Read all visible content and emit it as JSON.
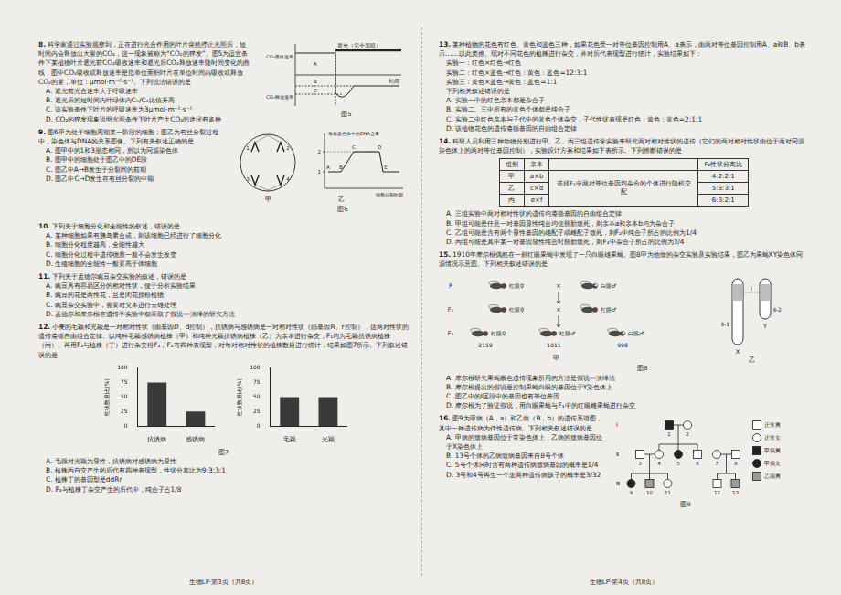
{
  "chart_data": [
    {
      "type": "bar",
      "ylabel": "性状数量比(%)",
      "categories": [
        "抗锈病",
        "感锈病"
      ],
      "values": [
        75,
        25
      ],
      "color": "#3a3a3a",
      "ylim": [
        0,
        100
      ],
      "yticks": [
        0,
        25,
        50,
        75,
        100
      ],
      "grid": false
    },
    {
      "type": "bar",
      "ylabel": "性状数量比(%)",
      "categories": [
        "毛颖",
        "光颖"
      ],
      "values": [
        50,
        50
      ],
      "color": "#3a3a3a",
      "ylim": [
        0,
        100
      ],
      "yticks": [
        0,
        25,
        50,
        75,
        100
      ],
      "grid": false
    }
  ],
  "pages": [
    {
      "footer": "生物LP·第3页（共8页）",
      "questions": [
        {
          "number": "8.",
          "stem": "科学家通过实验观察到，正在进行光合作用的叶片突然停止光照后，短时间内会释放出大量的CO₂，这一现象被称为“CO₂的猝发”。图5为适宜条件下某植物叶片遮光前CO₂吸收速率和遮光后CO₂释放速率随时间变化的曲线，图中CO₂吸收或释放速率是指单位面积叶片在单位时间内吸收或释放CO₂的量，单位：μmol·m⁻²·s⁻¹。下列说法错误的是",
          "options": [
            "A. 遮光前光合速率大于呼吸速率",
            "B. 遮光后的短时间内叶绿体内C₅/C₃比值升高",
            "C. 该实验条件下叶片的呼吸速率为3μmol·m⁻²·s⁻¹",
            "D. CO₂的猝发现象说明光照条件下叶片产生CO₂的途径有多种"
          ],
          "fig5": {
            "caption": "图5",
            "y_top": "CO₂吸收速率",
            "y_bottom": "CO₂释放速率",
            "x_label": "时间",
            "shade": "遮光（完全黑暗）",
            "regions": [
              "A",
              "B",
              "C"
            ]
          }
        },
        {
          "number": "9.",
          "stem": "图6甲为处于细胞周期某一阶段的细胞；图乙为有丝分裂过程中，染色体与DNA的关系图像。下列有关叙述正确的是",
          "options": [
            "A. 图甲中的1和3形态相同，所以为同源染色体",
            "B. 图甲中的细胞处于图乙中的DE段",
            "C. 图乙中A→B发生于分裂间的前期",
            "D. 图乙中C→D发生在有丝分裂的中期"
          ],
          "fig6": {
            "caption": "图6",
            "panels": [
              "甲",
              "乙"
            ],
            "cell_labels": [
              "1",
              "2",
              "3",
              "4"
            ],
            "y_label": "每条染色体中的DNA含量",
            "y_ticks": [
              "2",
              "1"
            ],
            "points": [
              "A",
              "B",
              "C",
              "D",
              "E"
            ],
            "x_label": "细胞分裂时期"
          }
        },
        {
          "number": "10.",
          "stem": "下列关于细胞分化和全能性的叙述，错误的是",
          "options": [
            "A. 某种细胞如果有胰岛素合成，则该细胞已经进行了细胞分化",
            "B. 细胞分化程度越高，全能性越大",
            "C. 细胞分化过程中遗传物质一般不会发生改变",
            "D. 生殖细胞的全能性一般要高于体细胞"
          ]
        },
        {
          "number": "11.",
          "stem": "下列关于孟德尔豌豆杂交实验的叙述，错误的是",
          "options": [
            "A. 豌豆具有容易区分的相对性状，便于分析实验结果",
            "B. 豌豆的花是两性花，且是闭花授粉植物",
            "C. 豌豆杂交实验中，需要对父本进行去雄处理",
            "D. 孟德尔和摩尔根在遗传学实验中都采取了假说—演绎的研究方法"
          ]
        },
        {
          "number": "12.",
          "stem": "小麦的毛颖和光颖是一对相对性状（由基因D、d控制），抗锈病与感锈病是一对相对性状（由基因R、r控制），这两对性状的遗传遵循自由组合定律。以纯种毛颖感锈病植株（甲）和纯种光颖抗锈病植株（乙）为亲本进行杂交，F₁均为毛颖抗锈病植株（丙）。再用F₁与植株（丁）进行杂交得F₂，F₂有四种表现型，对每对相对性状的植株数目进行统计，结果如图7所示。下列叙述错误的是",
          "fig7": {
            "caption": "图7"
          },
          "options": [
            "A. 毛颖对光颖为显性，抗锈病对感锈病为显性",
            "B. 植株丙自交产生的后代有四种表现型，性状分离比为9:3:3:1",
            "C. 植株丁的基因型是ddRr",
            "D. F₂与植株丁杂交产生的后代中，纯合子占1/8"
          ]
        }
      ]
    },
    {
      "footer": "生物LP·第4页（共8页）",
      "questions": [
        {
          "number": "13.",
          "stem": "某种植物的花色有红色、黄色和蓝色三种，如果花色受一对等位基因控制用A、a表示，由两对等位基因控制用A、a和B、b表示……以此类推。现对不同花色的植株进行杂交，并对后代表现型进行统计，实验结果如下：",
          "lines": [
            "实验一：红色×红色→红色",
            "实验二：红色×蓝色→红色：黄色：蓝色=12:3:1",
            "实验三：黄色×蓝色→黄色：蓝色=1:1"
          ],
          "ask": "下列相关叙述错误的是",
          "options": [
            "A. 实验一中的红色亲本都是杂合子",
            "B. 实验二、三中所有的蓝色个体都是纯合子",
            "C. 实验二中红色亲本与子代中的蓝色个体杂交，子代性状表现是红色：黄色：蓝色=2:1:1",
            "D. 该植物花色的遗传遵循基因的自由组合定律"
          ]
        },
        {
          "number": "14.",
          "stem": "科研人员利用三种动物分别进行甲、乙、丙三组遗传学实验来研究两对相对性状的遗传（它们的两对相对性状由位于两对同源染色体上的两对等位基因控制），实验设计方案和结果如下表所示。下列推断错误的是",
          "table": {
            "headers": [
              "组别",
              "亲本",
              "F₂性状分离比"
            ],
            "method": "选择F₁中两对等位基因均杂合的个体进行随机交配",
            "rows": [
              [
                "甲",
                "a×b",
                "4:2:2:1"
              ],
              [
                "乙",
                "c×d",
                "5:3:3:1"
              ],
              [
                "丙",
                "e×f",
                "6:3:2:1"
              ]
            ]
          },
          "options": [
            "A. 三组实验中两对相对性状的遗传均遵循基因的自由组合定律",
            "B. 甲组可能是任意一对基因显性纯合均使胚胎致死，则亲本a和亲本b均为杂合子",
            "C. 乙组可能是含有两个显性基因的雄配子或雌配子致死，则F₂中纯合子所占的比例为1/4",
            "D. 丙组可能是其中某一对基因显性纯合时胚胎致死，则F₂中杂合子所占的比例为3/4"
          ]
        },
        {
          "number": "15.",
          "stem": "1910年摩尔根偶然在一群红眼果蝇中发现了一只白眼雄果蝇。图8甲为他做的杂交实验及实验结果，图乙为果蝇XY染色体同源情况示意图。下列相关叙述错误的是",
          "fig8": {
            "caption": "图8",
            "panels": [
              "甲",
              "乙"
            ],
            "cross": "×",
            "generations": [
              "P",
              "F₁",
              "F₂"
            ],
            "P": [
              {
                "label": "红眼♀",
                "color": "#b03a2e"
              },
              {
                "label": "白眼♂",
                "color": "#ffffff"
              }
            ],
            "F1": [
              {
                "label": "红眼♀",
                "color": "#b03a2e"
              },
              {
                "label": "红眼♂",
                "color": "#b03a2e"
              }
            ],
            "F2": [
              {
                "label": "红眼♀",
                "color": "#b03a2e",
                "count": "2159"
              },
              {
                "label": "红眼♂",
                "color": "#b03a2e",
                "count": "1011"
              },
              {
                "label": "白眼♂",
                "color": "#ffffff",
                "count": "998"
              }
            ],
            "chromosomes": {
              "x": "X",
              "y": "Y",
              "x_only": "Ⅱ-1",
              "shared": "Ⅰ",
              "y_only": "Ⅱ-2"
            }
          },
          "options": [
            "A. 摩尔根研究果蝇眼色遗传现象所用的方法是假说—演绎法",
            "B. 摩尔根提出的假说是控制果蝇白眼的基因位于Y染色体上",
            "C. 图乙中的Ⅰ区段中的基因也有等位基因",
            "D. 摩尔根为了验证假说，用白眼果蝇与F₁中的红眼雌果蝇进行杂交"
          ]
        },
        {
          "number": "16.",
          "stem": "图9为甲病（A，a）和乙病（B，b）的遗传系谱图，其中一种遗传病为伴性遗传病。下列相关叙述错误的是",
          "fig9": {
            "caption": "图9",
            "generation_labels": [
              "Ⅰ",
              "Ⅱ",
              "Ⅲ"
            ],
            "legend": [
              {
                "label": "正常男",
                "marker": "square",
                "color": "#ffffff"
              },
              {
                "label": "正常女",
                "marker": "circle",
                "color": "#ffffff"
              },
              {
                "label": "甲病男",
                "marker": "square",
                "color": "#222222"
              },
              {
                "label": "甲病女",
                "marker": "circle",
                "color": "#222222"
              },
              {
                "label": "乙病男",
                "marker": "square",
                "color": "#9a9a9a"
              }
            ],
            "generations": [
              [
                "1",
                "2"
              ],
              [
                "3",
                "4",
                "5",
                "6",
                "7",
                "8"
              ],
              [
                "9",
                "10",
                "11",
                "12",
                "13"
              ]
            ],
            "individuals": [
              {
                "id": "1",
                "kind": "甲病男"
              },
              {
                "id": "2",
                "kind": "正常女"
              },
              {
                "id": "3",
                "kind": "正常男"
              },
              {
                "id": "4",
                "kind": "正常女"
              },
              {
                "id": "5",
                "kind": "甲病女"
              },
              {
                "id": "6",
                "kind": "正常男"
              },
              {
                "id": "7",
                "kind": "正常女"
              },
              {
                "id": "8",
                "kind": "正常男"
              },
              {
                "id": "9",
                "kind": "甲病女"
              },
              {
                "id": "10",
                "kind": "乙病男"
              },
              {
                "id": "11",
                "kind": "正常女"
              },
              {
                "id": "12",
                "kind": "正常男"
              },
              {
                "id": "13",
                "kind": "乙病男"
              }
            ],
            "families": [
              {
                "parents": [
                  "1",
                  "2"
                ],
                "children": [
                  "4",
                  "5",
                  "6"
                ]
              },
              {
                "parents": [
                  "3",
                  "4"
                ],
                "children": [
                  "9",
                  "10",
                  "11"
                ]
              },
              {
                "parents": [
                  "7",
                  "8"
                ],
                "children": [
                  "12",
                  "13"
                ]
              }
            ]
          },
          "options": [
            "A. 甲病的致病基因位于常染色体上，乙病的致病基因位于X染色体上",
            "B. 13号个体的乙病致病基因来自8号个体",
            "C. 5号个体同时含有两种遗传病致病基因的概率是1/4",
            "D. 3号和4号再生一个患两种遗传病孩子的概率是3/32"
          ]
        }
      ]
    }
  ]
}
